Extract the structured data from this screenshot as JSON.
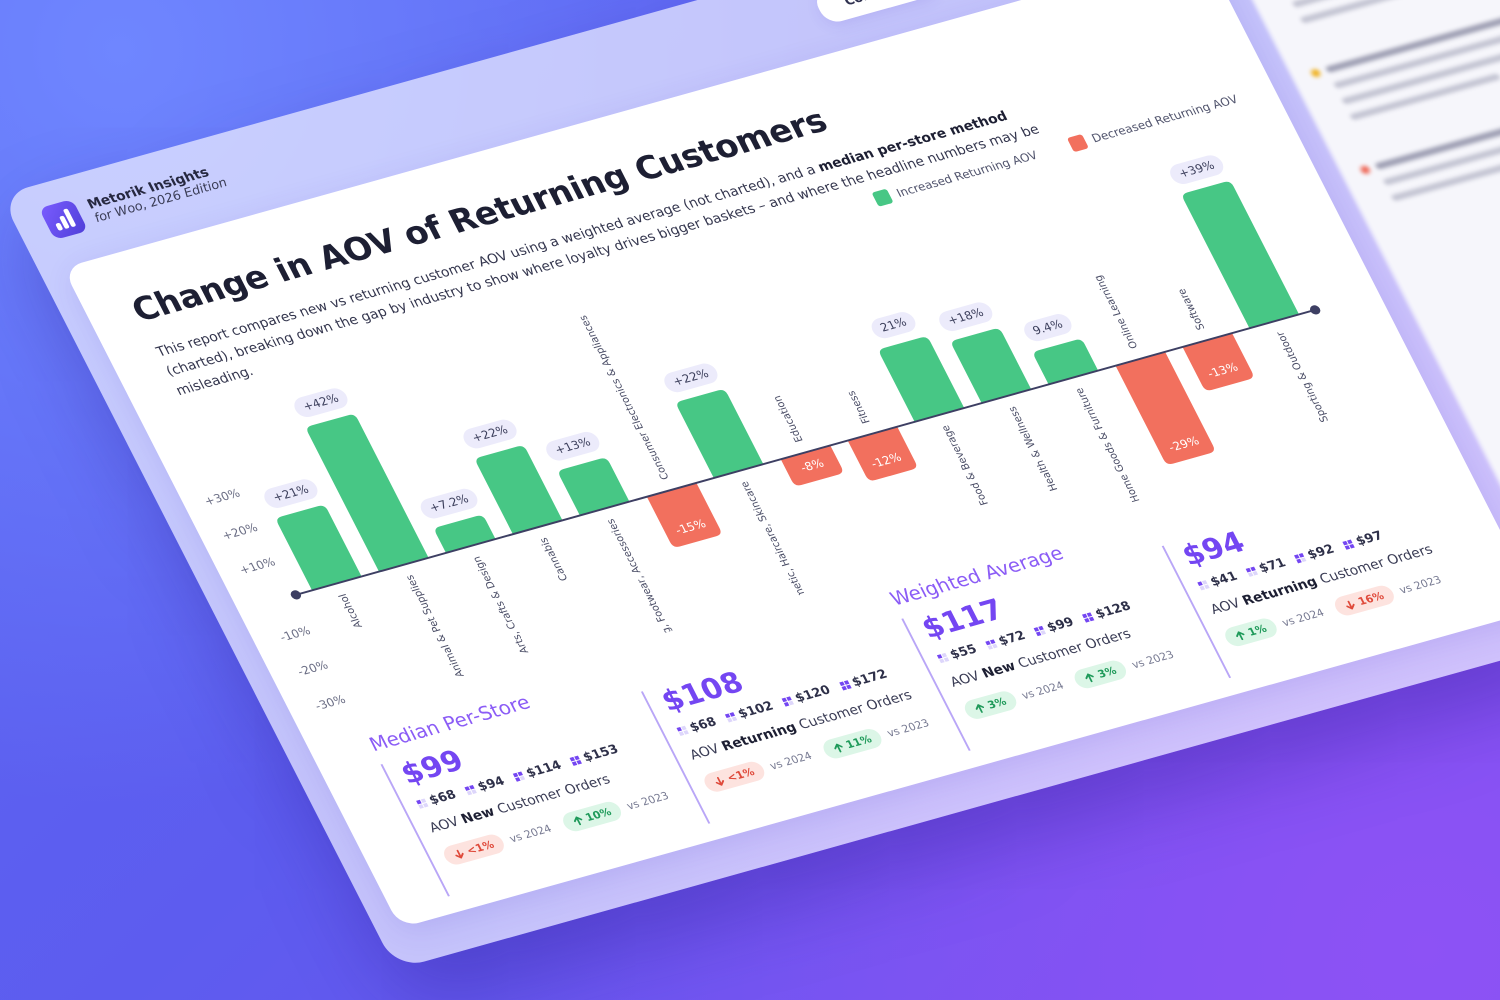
{
  "header": {
    "brand": "Metorik Insights",
    "edition": "for Woo, 2026 Edition",
    "tab": "Contents"
  },
  "chart_data": {
    "type": "bar",
    "title": "Change in AOV of Returning Customers",
    "subtitle": [
      {
        "text": "This report compares new vs returning customer AOV using a weighted average (not charted), and a "
      },
      {
        "text": "median per-store method",
        "bold": true
      },
      {
        "text": " (charted), breaking down the gap by industry to show where loyalty drives bigger baskets – and where the headline numbers may be misleading."
      }
    ],
    "categories": [
      "Alcohol",
      "Animal & Pet Supplies",
      "Arts, Crafts & Design",
      "Cannabis",
      "Clothing, Footwear, Accessories",
      "Consumer Electronics & Appliances",
      "Cosmetic, Haircare, Skincare",
      "Education",
      "Fitness",
      "Food & Beverage",
      "Health & Wellness",
      "Home Goods & Furniture",
      "Online Learning",
      "Software",
      "Sporting & Outdoor"
    ],
    "values": [
      21,
      42,
      7.2,
      22,
      13,
      -15,
      22,
      -8,
      -12,
      21,
      18,
      9.4,
      -29,
      -13,
      39
    ],
    "value_labels": [
      "+21%",
      "+42%",
      "+7.2%",
      "+22%",
      "+13%",
      "-15%",
      "+22%",
      "-8%",
      "-12%",
      "21%",
      "+18%",
      "9.4%",
      "-29%",
      "-13%",
      "+39%"
    ],
    "legend": [
      {
        "name": "Increased Returning AOV",
        "color": "#47c785"
      },
      {
        "name": "Decreased Returning AOV",
        "color": "#f2705e"
      }
    ],
    "legend_position": "top-right",
    "ylim": [
      -30,
      45
    ],
    "yticks": [
      {
        "value": -30,
        "label": "-30%"
      },
      {
        "value": -20,
        "label": "-20%"
      },
      {
        "value": -10,
        "label": "-10%"
      },
      {
        "value": 10,
        "label": "+10%"
      },
      {
        "value": 20,
        "label": "+20%"
      },
      {
        "value": 30,
        "label": "+30%"
      }
    ],
    "grid": false
  },
  "stats": {
    "groups": [
      {
        "title": "Median Per-Store",
        "cards": [
          {
            "value": "$99",
            "quartiles": [
              "$68",
              "$94",
              "$114",
              "$153"
            ],
            "label": {
              "prefix": "AOV",
              "emphasis": "New",
              "suffix": "Customer Orders"
            },
            "changes": [
              {
                "direction": "down",
                "value": "<1%",
                "compare": "vs 2024"
              },
              {
                "direction": "up",
                "value": "10%",
                "compare": "vs 2023"
              }
            ]
          },
          {
            "value": "$108",
            "quartiles": [
              "$68",
              "$102",
              "$120",
              "$172"
            ],
            "label": {
              "prefix": "AOV",
              "emphasis": "Returning",
              "suffix": "Customer Orders"
            },
            "changes": [
              {
                "direction": "down",
                "value": "<1%",
                "compare": "vs 2024"
              },
              {
                "direction": "up",
                "value": "11%",
                "compare": "vs 2023"
              }
            ]
          }
        ]
      },
      {
        "title": "Weighted Average",
        "cards": [
          {
            "value": "$117",
            "quartiles": [
              "$55",
              "$72",
              "$99",
              "$128"
            ],
            "label": {
              "prefix": "AOV",
              "emphasis": "New",
              "suffix": "Customer Orders"
            },
            "changes": [
              {
                "direction": "up",
                "value": "3%",
                "compare": "vs 2024"
              },
              {
                "direction": "up",
                "value": "3%",
                "compare": "vs 2023"
              }
            ]
          },
          {
            "value": "$94",
            "quartiles": [
              "$41",
              "$71",
              "$92",
              "$97"
            ],
            "label": {
              "prefix": "AOV",
              "emphasis": "Returning",
              "suffix": "Customer Orders"
            },
            "changes": [
              {
                "direction": "up",
                "value": "1%",
                "compare": "vs 2024"
              },
              {
                "direction": "down",
                "value": "16%",
                "compare": "vs 2023"
              }
            ]
          }
        ]
      }
    ]
  }
}
